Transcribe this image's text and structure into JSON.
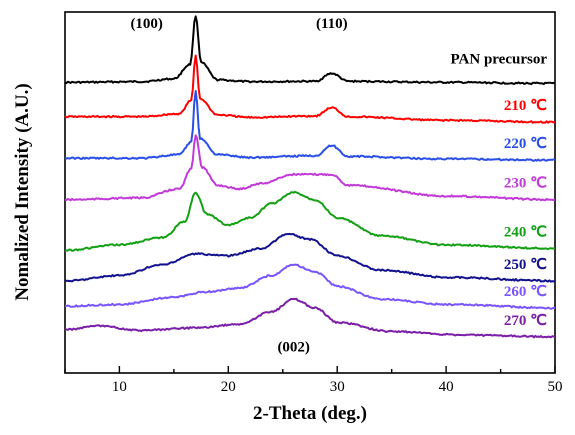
{
  "chart_data": {
    "type": "line",
    "xlabel": "2-Theta (deg.)",
    "ylabel": "Nomalized Intensity (A.U.)",
    "xlim": [
      5,
      50
    ],
    "ylim": [
      0,
      1
    ],
    "grid": false,
    "legend": "inline labels at right end of each curve",
    "x_ticks": [
      "10",
      "20",
      "30",
      "40",
      "50"
    ],
    "annotations": [
      {
        "text": "(100)",
        "x": 12.5,
        "y": 0.955
      },
      {
        "text": "(110)",
        "x": 29.5,
        "y": 0.955
      },
      {
        "text": "(002)",
        "x": 26.0,
        "y": 0.06
      }
    ],
    "series": [
      {
        "name": "PAN precursor",
        "color": "#000000",
        "values": [
          [
            5,
            0.805
          ],
          [
            12,
            0.807
          ],
          [
            15,
            0.815
          ],
          [
            16.5,
            0.855
          ],
          [
            17.0,
            0.99
          ],
          [
            17.5,
            0.86
          ],
          [
            19,
            0.812
          ],
          [
            22,
            0.807
          ],
          [
            28,
            0.808
          ],
          [
            29.5,
            0.83
          ],
          [
            31,
            0.808
          ],
          [
            40,
            0.805
          ],
          [
            50,
            0.802
          ]
        ]
      },
      {
        "name": "210 ℃",
        "color": "#ff0000",
        "values": [
          [
            5,
            0.71
          ],
          [
            12,
            0.71
          ],
          [
            15.5,
            0.718
          ],
          [
            16.6,
            0.755
          ],
          [
            17.0,
            0.88
          ],
          [
            17.4,
            0.76
          ],
          [
            19,
            0.715
          ],
          [
            22,
            0.708
          ],
          [
            28,
            0.712
          ],
          [
            29.5,
            0.735
          ],
          [
            31,
            0.71
          ],
          [
            40,
            0.7
          ],
          [
            50,
            0.695
          ]
        ]
      },
      {
        "name": "220 ℃",
        "color": "#2a4ee8",
        "values": [
          [
            5,
            0.595
          ],
          [
            12,
            0.595
          ],
          [
            15.5,
            0.605
          ],
          [
            16.6,
            0.64
          ],
          [
            17.0,
            0.78
          ],
          [
            17.4,
            0.65
          ],
          [
            19,
            0.605
          ],
          [
            22,
            0.597
          ],
          [
            28,
            0.602
          ],
          [
            29.5,
            0.63
          ],
          [
            31,
            0.6
          ],
          [
            40,
            0.593
          ],
          [
            50,
            0.59
          ]
        ]
      },
      {
        "name": "230 ℃",
        "color": "#c13ad8",
        "values": [
          [
            5,
            0.48
          ],
          [
            12,
            0.485
          ],
          [
            15.5,
            0.51
          ],
          [
            16.6,
            0.565
          ],
          [
            17.0,
            0.66
          ],
          [
            17.6,
            0.57
          ],
          [
            19,
            0.52
          ],
          [
            21,
            0.51
          ],
          [
            23,
            0.525
          ],
          [
            26,
            0.55
          ],
          [
            29.5,
            0.55
          ],
          [
            31,
            0.52
          ],
          [
            40,
            0.49
          ],
          [
            50,
            0.48
          ]
        ]
      },
      {
        "name": "240 ℃",
        "color": "#14a014",
        "values": [
          [
            5,
            0.34
          ],
          [
            10,
            0.355
          ],
          [
            14,
            0.375
          ],
          [
            16,
            0.42
          ],
          [
            17.0,
            0.5
          ],
          [
            18,
            0.44
          ],
          [
            20,
            0.41
          ],
          [
            22,
            0.43
          ],
          [
            24,
            0.47
          ],
          [
            26,
            0.5
          ],
          [
            28,
            0.48
          ],
          [
            30,
            0.43
          ],
          [
            34,
            0.38
          ],
          [
            40,
            0.355
          ],
          [
            50,
            0.345
          ]
        ]
      },
      {
        "name": "250 ℃",
        "color": "#12128f",
        "values": [
          [
            5,
            0.255
          ],
          [
            10,
            0.27
          ],
          [
            14,
            0.3
          ],
          [
            17,
            0.33
          ],
          [
            20,
            0.325
          ],
          [
            23,
            0.345
          ],
          [
            25.5,
            0.385
          ],
          [
            27.5,
            0.37
          ],
          [
            30,
            0.325
          ],
          [
            34,
            0.285
          ],
          [
            40,
            0.265
          ],
          [
            50,
            0.255
          ]
        ]
      },
      {
        "name": "260 ℃",
        "color": "#7a55ff",
        "values": [
          [
            5,
            0.185
          ],
          [
            10,
            0.19
          ],
          [
            15,
            0.21
          ],
          [
            18,
            0.225
          ],
          [
            21,
            0.235
          ],
          [
            24,
            0.27
          ],
          [
            26,
            0.3
          ],
          [
            28,
            0.28
          ],
          [
            30,
            0.24
          ],
          [
            34,
            0.205
          ],
          [
            40,
            0.19
          ],
          [
            50,
            0.18
          ]
        ]
      },
      {
        "name": "270 ℃",
        "color": "#7b1ea8",
        "values": [
          [
            5,
            0.12
          ],
          [
            8,
            0.13
          ],
          [
            12,
            0.118
          ],
          [
            17,
            0.125
          ],
          [
            21,
            0.135
          ],
          [
            24,
            0.17
          ],
          [
            26,
            0.205
          ],
          [
            28,
            0.18
          ],
          [
            30,
            0.14
          ],
          [
            35,
            0.115
          ],
          [
            42,
            0.105
          ],
          [
            50,
            0.1
          ]
        ]
      }
    ]
  }
}
